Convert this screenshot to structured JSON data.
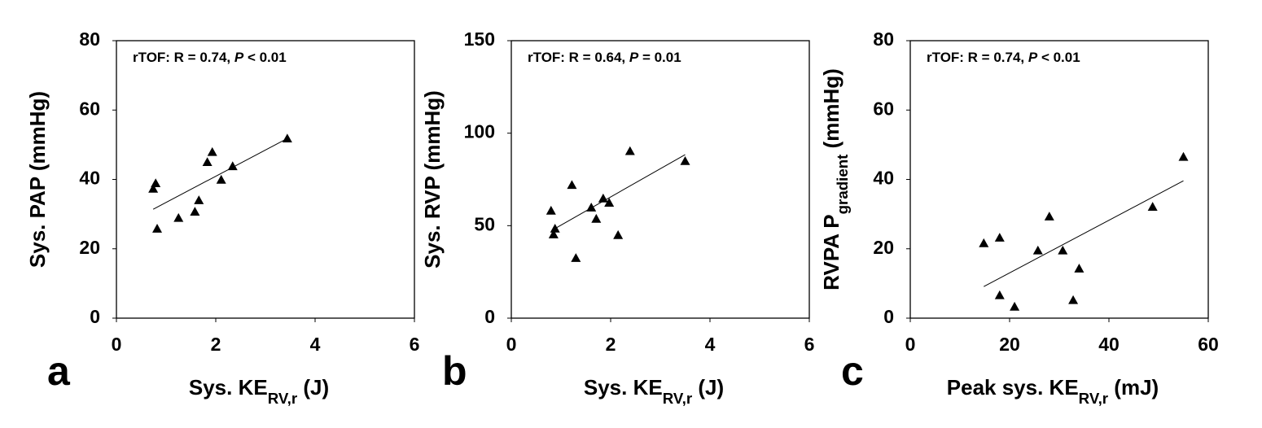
{
  "chart_data": [
    {
      "type": "scatter",
      "panel_label": "a",
      "annotation": [
        {
          "text": "rTOF: R = 0.74, "
        },
        {
          "text": "P",
          "italic": true
        },
        {
          "text": " < 0.01"
        }
      ],
      "xlabel": [
        {
          "text": "Sys. KE"
        },
        {
          "text": "RV,r",
          "sub": true
        },
        {
          "text": " (J)"
        }
      ],
      "ylabel": [
        {
          "text": "Sys. PAP (mmHg)"
        }
      ],
      "x": [
        0.74,
        0.79,
        0.82,
        1.25,
        1.58,
        1.66,
        1.83,
        1.93,
        2.11,
        2.34,
        3.44
      ],
      "y": [
        37.3,
        38.9,
        25.8,
        28.9,
        30.7,
        34,
        45,
        47.9,
        39.9,
        43.8,
        51.8
      ],
      "marker": "triangle",
      "color": "#000000",
      "trendline": {
        "x": [
          0.74,
          3.44
        ],
        "y": [
          31.4,
          51.8
        ]
      },
      "xlim": [
        0,
        6
      ],
      "ylim": [
        0,
        80
      ],
      "xticks": [
        0,
        2,
        4,
        6
      ],
      "yticks": [
        0,
        20,
        40,
        60,
        80
      ]
    },
    {
      "type": "scatter",
      "panel_label": "b",
      "annotation": [
        {
          "text": "rTOF: R = 0.64, "
        },
        {
          "text": "P",
          "italic": true
        },
        {
          "text": " = 0.01"
        }
      ],
      "xlabel": [
        {
          "text": "Sys. KE"
        },
        {
          "text": "RV,r",
          "sub": true
        },
        {
          "text": " (J)"
        }
      ],
      "ylabel": [
        {
          "text": "Sys. RVP (mmHg)"
        }
      ],
      "x": [
        0.8,
        0.88,
        0.85,
        1.22,
        1.3,
        1.61,
        1.71,
        1.85,
        1.97,
        2.15,
        2.39,
        3.5
      ],
      "y": [
        58.1,
        48.4,
        45.3,
        72,
        32.5,
        59.8,
        53.7,
        64.7,
        62.4,
        44.9,
        90.3,
        84.9
      ],
      "marker": "triangle",
      "color": "#000000",
      "trendline": {
        "x": [
          0.85,
          3.5
        ],
        "y": [
          48,
          88.4
        ]
      },
      "xlim": [
        0,
        6
      ],
      "ylim": [
        0,
        150
      ],
      "xticks": [
        0,
        2,
        4,
        6
      ],
      "yticks": [
        0,
        50,
        100,
        150
      ]
    },
    {
      "type": "scatter",
      "panel_label": "c",
      "annotation": [
        {
          "text": "rTOF: R = 0.74, "
        },
        {
          "text": "P",
          "italic": true
        },
        {
          "text": " < 0.01"
        }
      ],
      "xlabel": [
        {
          "text": "Peak sys. KE"
        },
        {
          "text": "RV,r",
          "sub": true
        },
        {
          "text": " (mJ)"
        }
      ],
      "ylabel": [
        {
          "text": "RVPA P"
        },
        {
          "text": "gradient",
          "sub": true
        },
        {
          "text": " (mmHg)"
        }
      ],
      "x": [
        14.8,
        18,
        18,
        21,
        25.7,
        28,
        30.7,
        32.8,
        34,
        48.8,
        55
      ],
      "y": [
        21.6,
        23.2,
        6.6,
        3.3,
        19.5,
        29.3,
        19.5,
        5.2,
        14.3,
        32.1,
        46.5
      ],
      "marker": "triangle",
      "color": "#000000",
      "trendline": {
        "x": [
          14.8,
          55
        ],
        "y": [
          9.1,
          39.6
        ]
      },
      "xlim": [
        0,
        60
      ],
      "ylim": [
        0,
        80
      ],
      "xticks": [
        0,
        20,
        40,
        60
      ],
      "yticks": [
        0,
        20,
        40,
        60,
        80
      ]
    }
  ]
}
